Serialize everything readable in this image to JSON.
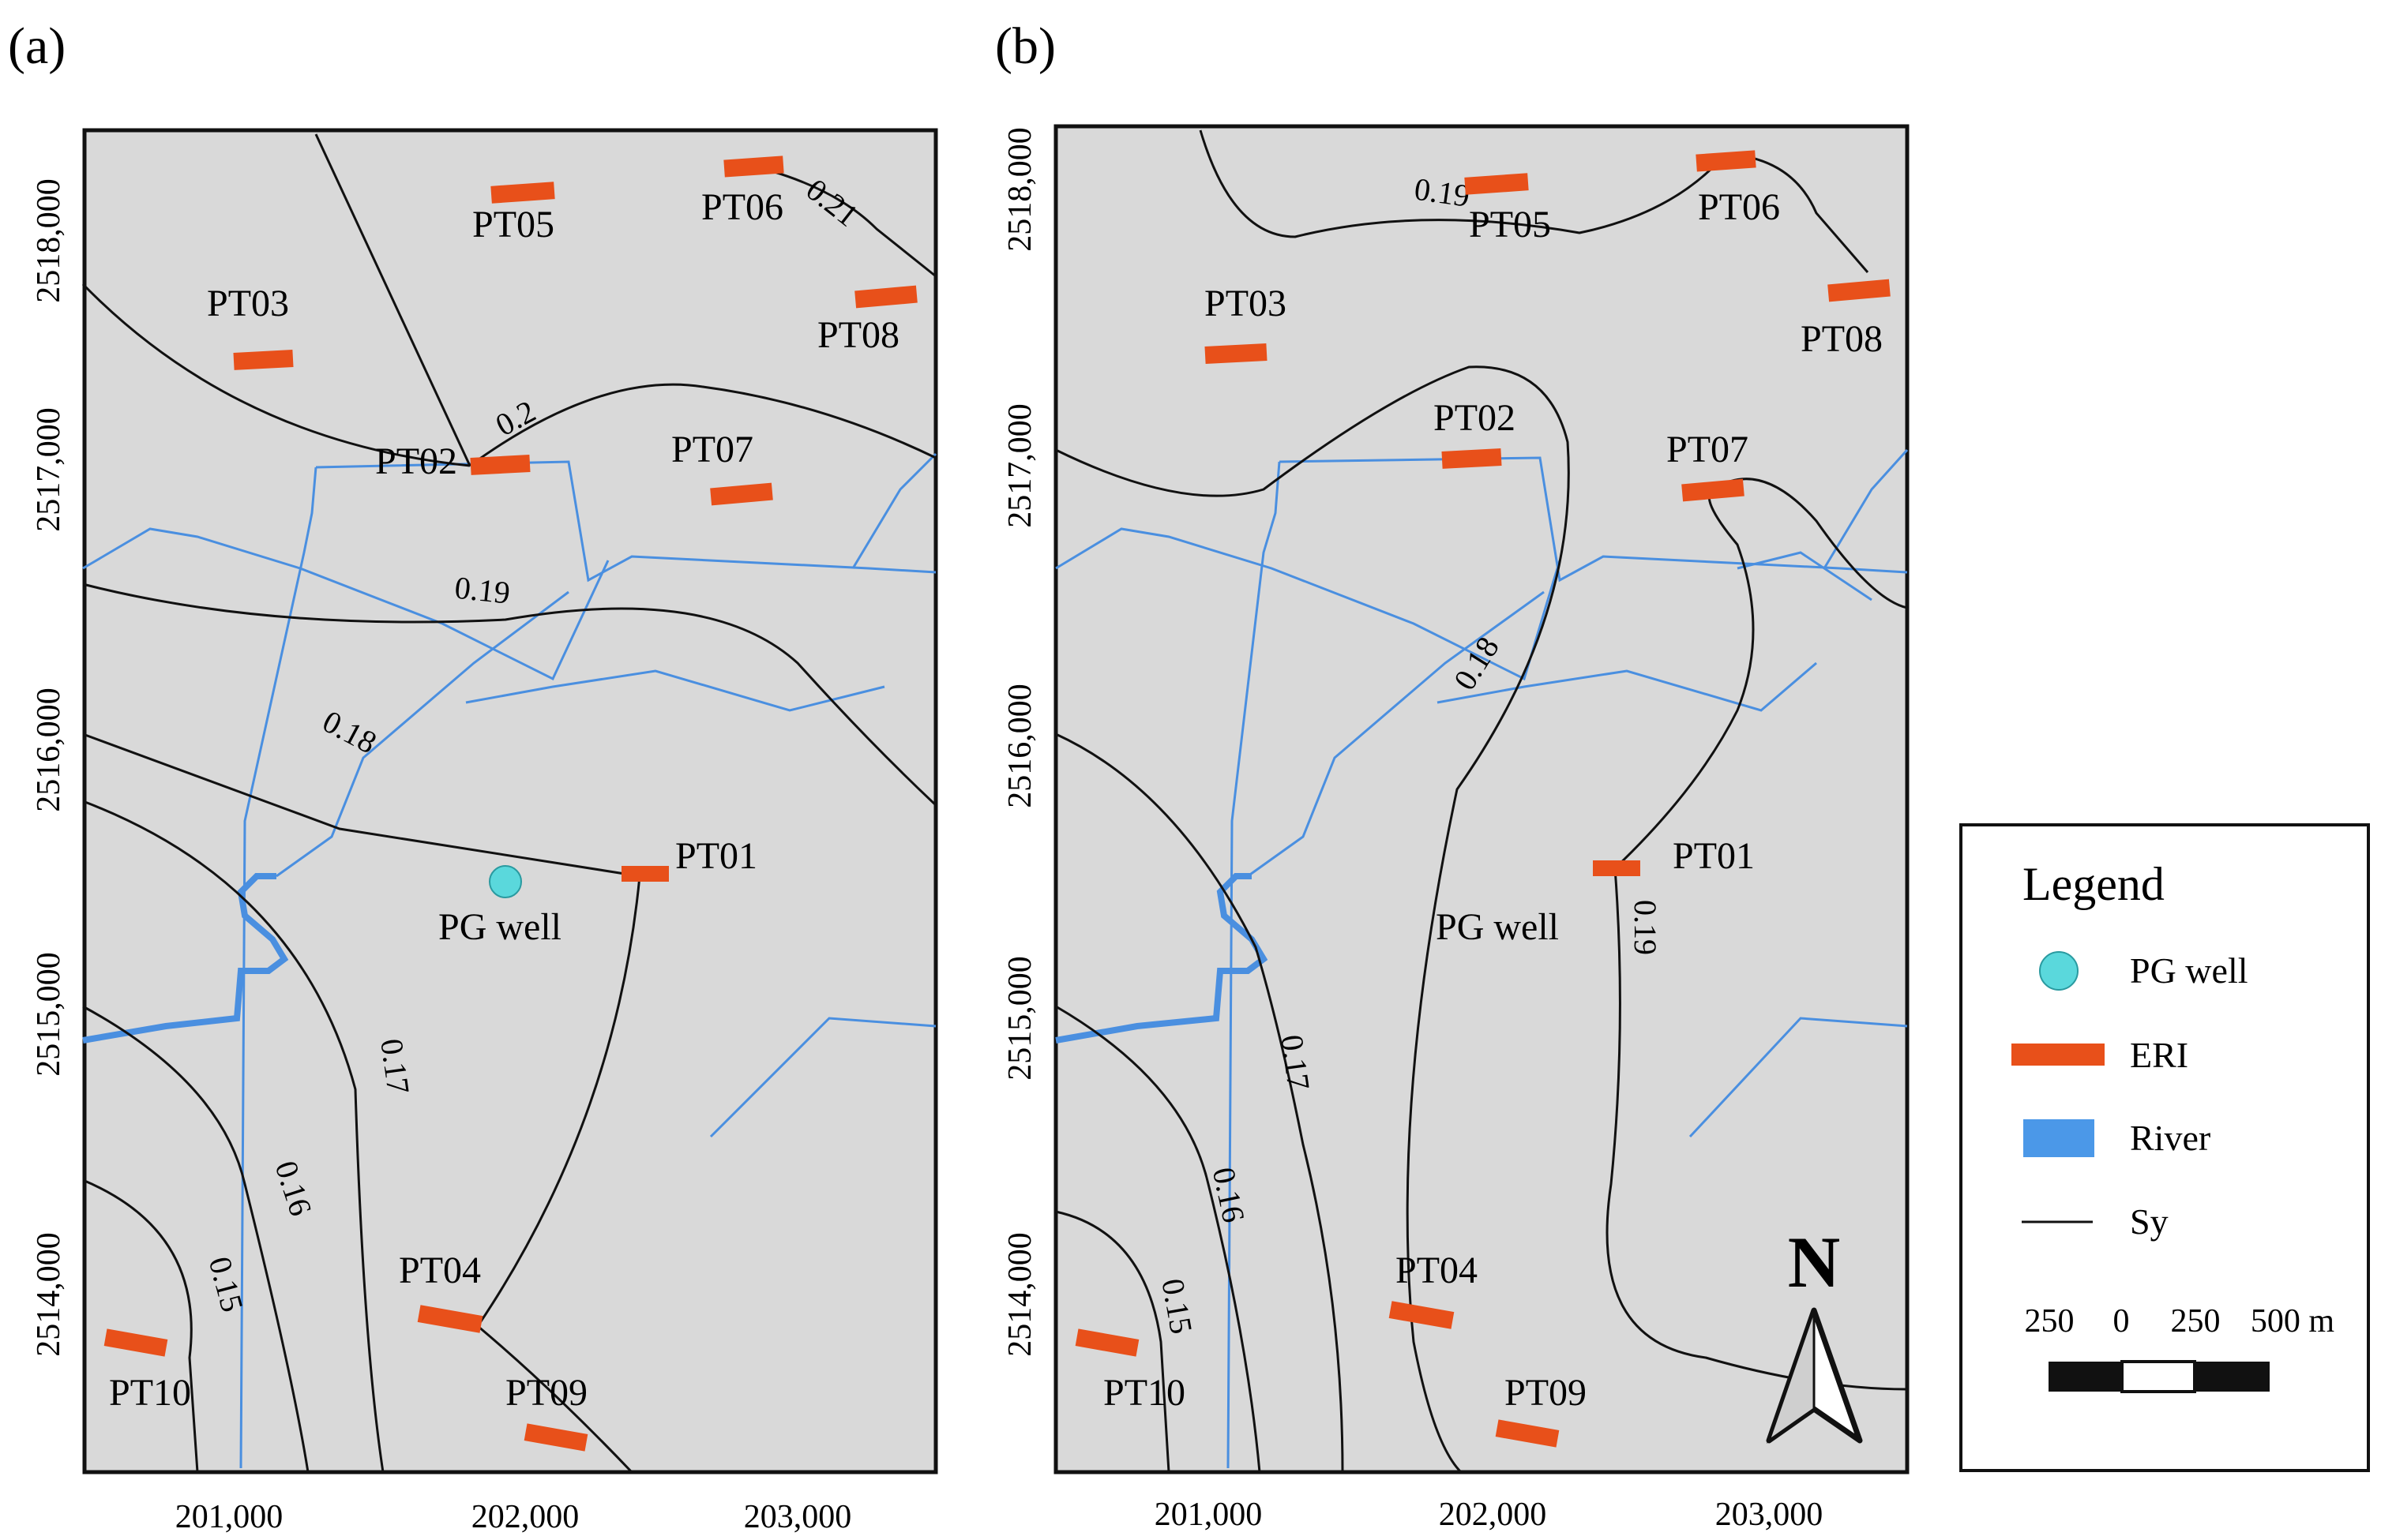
{
  "panels": [
    {
      "letter": "(a)",
      "y_ticks": [
        "2518,000",
        "2517,000",
        "2516,000",
        "2515,000",
        "2514,000"
      ],
      "x_ticks": [
        "201,000",
        "202,000",
        "203,000"
      ],
      "contours": [
        "0.21",
        "0.2",
        "0.19",
        "0.18",
        "0.17",
        "0.16",
        "0.15"
      ],
      "well_label": "PG well",
      "sites": [
        "PT01",
        "PT02",
        "PT03",
        "PT04",
        "PT05",
        "PT06",
        "PT07",
        "PT08",
        "PT09",
        "PT10"
      ]
    },
    {
      "letter": "(b)",
      "y_ticks": [
        "2518,000",
        "2517,000",
        "2516,000",
        "2515,000",
        "2514,000"
      ],
      "x_ticks": [
        "201,000",
        "202,000",
        "203,000"
      ],
      "contours": [
        "0.19",
        "0.18",
        "0.19",
        "0.17",
        "0.16",
        "0.15"
      ],
      "well_label": "PG well",
      "sites": [
        "PT01",
        "PT02",
        "PT03",
        "PT04",
        "PT05",
        "PT06",
        "PT07",
        "PT08",
        "PT09",
        "PT10"
      ]
    }
  ],
  "north_label": "N",
  "legend": {
    "title": "Legend",
    "items": [
      {
        "label": "PG well",
        "color": "#5ad8dc"
      },
      {
        "label": "ERI",
        "color": "#e8501a"
      },
      {
        "label": "River",
        "color": "#4b98e8"
      },
      {
        "label": "Sy",
        "color": "#111111"
      }
    ],
    "scale_labels": [
      "250",
      "0",
      "250",
      "500 m"
    ]
  },
  "colors": {
    "map_bg": "#d9d9d9",
    "river": "#4a8fe0",
    "eri": "#e8501a",
    "well": "#5ad8dc",
    "contour": "#111111"
  }
}
